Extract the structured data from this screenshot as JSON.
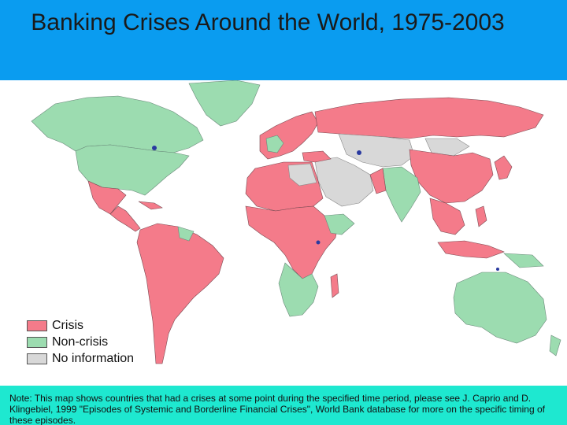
{
  "title": "Banking Crises Around the World, 1975-2003",
  "legend": [
    {
      "label": "Crisis",
      "color": "#f47b8a"
    },
    {
      "label": "Non-crisis",
      "color": "#9cdcb0"
    },
    {
      "label": "No information",
      "color": "#d8d8d8"
    }
  ],
  "colors": {
    "title_band": "#0a9cf0",
    "note_band": "#1ee8d0",
    "crisis": "#f47b8a",
    "non_crisis": "#9cdcb0",
    "no_information": "#d8d8d8",
    "water_accent": "#2a3aa0"
  },
  "note": "Note: This map shows countries that had a crises at some point during the specified time period, please see J. Caprio and D. Klingebiel, 1999 \"Episodes of Systemic and Borderline Financial Crises\", World Bank database for more on the specific timing of these episodes."
}
